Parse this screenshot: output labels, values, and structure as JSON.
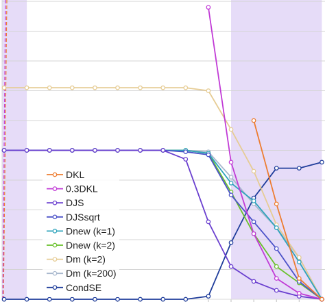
{
  "chart_data": {
    "type": "line",
    "title": "",
    "xlabel": "",
    "ylabel": "",
    "x": [
      0,
      1,
      2,
      3,
      4,
      5,
      6,
      7,
      8,
      9,
      10,
      11,
      12,
      13,
      14
    ],
    "xlim": [
      0,
      14
    ],
    "ylim": [
      0,
      10
    ],
    "grid": true,
    "legend_position": "center-left",
    "shaded_regions": [
      {
        "from": -0.15,
        "to": 1.0
      },
      {
        "from": 10.0,
        "to": 14.0
      }
    ],
    "series": [
      {
        "name": "DKL",
        "color": "#ED7D31",
        "values": [
          null,
          null,
          null,
          null,
          null,
          null,
          null,
          null,
          null,
          null,
          null,
          6.0,
          3.2,
          0.7,
          0.0
        ]
      },
      {
        "name": "0.3DKL",
        "color": "#C13BD6",
        "values": [
          null,
          null,
          null,
          null,
          null,
          null,
          null,
          null,
          null,
          9.8,
          4.6,
          2.2,
          0.7,
          0.2,
          0.0
        ]
      },
      {
        "name": "DJS",
        "color": "#6A3FCF",
        "values": [
          5.0,
          5.0,
          5.0,
          5.0,
          5.0,
          5.0,
          5.0,
          5.0,
          4.7,
          2.6,
          1.1,
          0.6,
          0.3,
          0.1,
          0.0
        ]
      },
      {
        "name": "DJSsqrt",
        "color": "#4B52C8",
        "values": [
          5.0,
          5.0,
          5.0,
          5.0,
          5.0,
          5.0,
          5.0,
          5.0,
          4.95,
          4.85,
          3.5,
          2.6,
          1.7,
          0.6,
          0.0
        ]
      },
      {
        "name": "Dnew (k=1)",
        "color": "#2EA3BB",
        "values": [
          5.0,
          5.0,
          5.0,
          5.0,
          5.0,
          5.0,
          5.0,
          5.0,
          5.0,
          4.9,
          3.9,
          3.3,
          2.4,
          1.25,
          0.0
        ]
      },
      {
        "name": "Dnew (k=2)",
        "color": "#6AC12C",
        "values": [
          5.0,
          5.0,
          5.0,
          5.0,
          5.0,
          5.0,
          5.0,
          5.0,
          5.0,
          4.9,
          3.6,
          2.2,
          1.1,
          0.55,
          0.0
        ]
      },
      {
        "name": "Dm (k=2)",
        "color": "#E6CC94",
        "values": [
          7.1,
          7.1,
          7.1,
          7.1,
          7.1,
          7.1,
          7.1,
          7.1,
          7.1,
          7.0,
          5.7,
          4.3,
          2.5,
          1.4,
          0.0
        ]
      },
      {
        "name": "Dm (k=200)",
        "color": "#A8B8CE",
        "values": [
          5.0,
          5.0,
          5.0,
          5.0,
          5.0,
          5.0,
          5.0,
          5.0,
          5.0,
          4.95,
          4.1,
          3.2,
          2.4,
          1.4,
          0.0
        ]
      },
      {
        "name": "CondSE",
        "color": "#1F3D9B",
        "values": [
          0.0,
          0.0,
          0.0,
          0.0,
          0.0,
          0.0,
          0.0,
          0.0,
          0.0,
          0.1,
          1.9,
          3.4,
          4.4,
          4.4,
          4.6
        ]
      }
    ]
  }
}
